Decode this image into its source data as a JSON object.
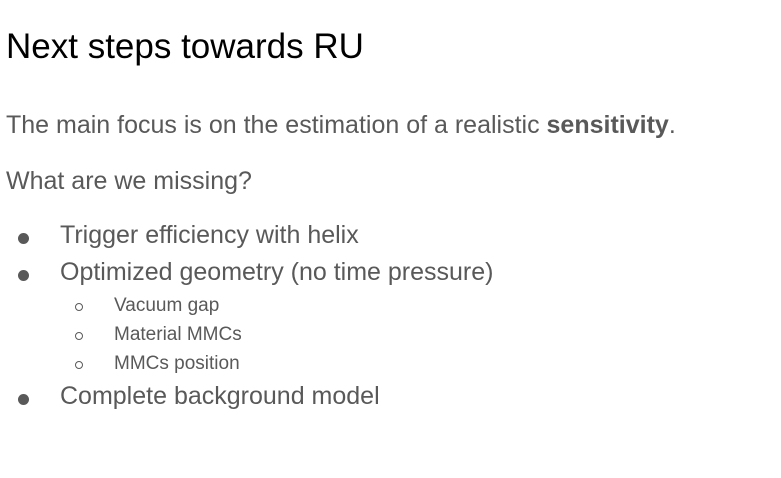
{
  "slide": {
    "title": "Next steps towards RU",
    "intro": {
      "text_before": "The main focus is on the estimation of a realistic ",
      "bold": "sensitivity",
      "text_after": "."
    },
    "question": "What are we missing?",
    "bullets": [
      "Trigger efficiency with helix",
      "Optimized geometry (no time pressure)",
      "Complete background model"
    ],
    "sub_bullets": [
      "Vacuum gap",
      "Material MMCs",
      "MMCs position"
    ]
  }
}
